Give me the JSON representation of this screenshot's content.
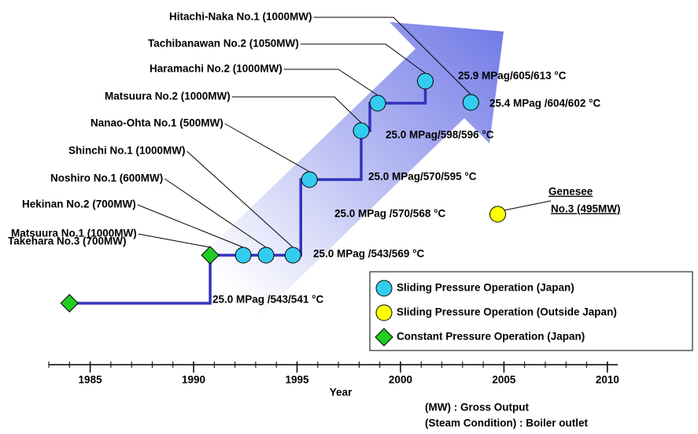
{
  "chart_data": {
    "type": "timeline",
    "xlabel": "Year",
    "xlim": [
      1983,
      2010.5
    ],
    "xticks": [
      1985,
      1990,
      1995,
      2000,
      2005,
      2010
    ],
    "plants": [
      {
        "name": "Takehara No.3 (700MW)",
        "year": 1984,
        "kind": "constant"
      },
      {
        "name": "Matsuura No.1 (1000MW)",
        "year": 1990.8,
        "kind": "constant"
      },
      {
        "name": "Hekinan No.2  (700MW)",
        "year": 1992.4,
        "kind": "japan"
      },
      {
        "name": "Noshiro No.1 (600MW)",
        "year": 1993.5,
        "kind": "japan"
      },
      {
        "name": "Shinchi No.1 (1000MW)",
        "year": 1994.8,
        "kind": "japan"
      },
      {
        "name": "Nanao-Ohta No.1 (500MW)",
        "year": 1995.6,
        "kind": "japan"
      },
      {
        "name": "Matsuura No.2 (1000MW)",
        "year": 1998.1,
        "kind": "japan"
      },
      {
        "name": "Haramachi No.2 (1000MW)",
        "year": 1998.9,
        "kind": "japan"
      },
      {
        "name": "Tachibanawan No.2 (1050MW)",
        "year": 2001.2,
        "kind": "japan"
      },
      {
        "name": "Hitachi-Naka No.1 (1000MW)",
        "year": 2003.4,
        "kind": "japan"
      },
      {
        "name": [
          "Genesee",
          "No.3 (495MW)"
        ],
        "year": 2004.7,
        "kind": "outside"
      }
    ],
    "conditions": [
      "25.0 MPag /543/541 °C",
      "25.0 MPag /543/569 °C",
      "25.0 MPag/570/595 °C",
      "25.0 MPag/598/596 °C",
      "25.9 MPag/605/613 °C",
      "25.4 MPag /604/602 °C",
      "25.0 MPag /570/568 °C"
    ],
    "legend": [
      {
        "label": "Sliding Pressure Operation (Japan)",
        "kind": "japan"
      },
      {
        "label": "Sliding Pressure Operation (Outside Japan)",
        "kind": "outside"
      },
      {
        "label": "Constant Pressure Operation (Japan)",
        "kind": "constant"
      }
    ],
    "colors": {
      "japan": "#33ccee",
      "outside": "#ffff00",
      "constant": "#22cc22",
      "line": "#3333bb",
      "highlight": "#ff3300"
    },
    "notes": [
      "(MW) : Gross Output",
      "(Steam Condition) :  Boiler outlet"
    ]
  }
}
